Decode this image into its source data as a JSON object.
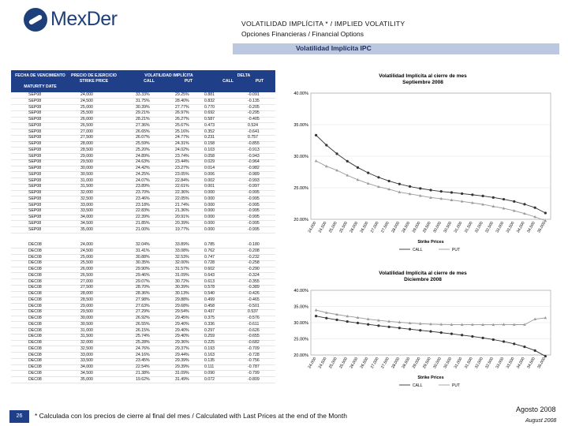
{
  "header": {
    "logo_text": "MexDer",
    "title": "VOLATILIDAD IMPLÍCITA * / IMPLIED VOLATILITY",
    "subtitle": "Opciones Financieras / Financial Options",
    "banner": "Volatilidad Implícita IPC"
  },
  "table": {
    "headers": {
      "expiry": "FECHA DE VENCIMIENTO",
      "expiry_en": "MATURITY DATE",
      "strike": "PRECIO DE EJERCICIO",
      "strike_en": "STRIKE PRICE",
      "vol": "VOLATILIDAD IMPLÍCITA",
      "call": "CALL",
      "put": "PUT",
      "delta": "DELTA",
      "delta_call": "CALL",
      "delta_put": "PUT"
    },
    "sep_rows": [
      [
        "SEP08",
        "24,000",
        "33.33%",
        "29.25%",
        "0.881",
        "-0.091"
      ],
      [
        "SEP08",
        "24,500",
        "31.75%",
        "28.40%",
        "0.832",
        "-0.135"
      ],
      [
        "SEP08",
        "25,000",
        "30.39%",
        "27.77%",
        "0.770",
        "-0.205"
      ],
      [
        "SEP08",
        "25,500",
        "29.21%",
        "26.97%",
        "0.692",
        "-0.295"
      ],
      [
        "SEP08",
        "26,000",
        "28.21%",
        "26.27%",
        "0.587",
        "-0.405"
      ],
      [
        "SEP08",
        "26,500",
        "27.36%",
        "25.67%",
        "0.473",
        "0.524"
      ],
      [
        "SEP08",
        "27,000",
        "26.65%",
        "25.16%",
        "0.352",
        "-0.641"
      ],
      [
        "SEP08",
        "27,500",
        "26.07%",
        "24.77%",
        "0.231",
        "0.757"
      ],
      [
        "SEP08",
        "28,000",
        "25.59%",
        "24.31%",
        "0.158",
        "-0.855"
      ],
      [
        "SEP08",
        "28,500",
        "25.20%",
        "24.02%",
        "0.103",
        "-0.913"
      ],
      [
        "SEP08",
        "29,000",
        "24.89%",
        "23.74%",
        "0.058",
        "-0.943"
      ],
      [
        "SEP08",
        "29,500",
        "24.63%",
        "23.44%",
        "0.029",
        "-0.964"
      ],
      [
        "SEP08",
        "30,000",
        "24.42%",
        "23.27%",
        "0.014",
        "-0.982"
      ],
      [
        "SEP08",
        "30,500",
        "24.25%",
        "23.05%",
        "0.006",
        "-0.989"
      ],
      [
        "SEP08",
        "31,000",
        "24.07%",
        "22.84%",
        "0.002",
        "-0.993"
      ],
      [
        "SEP08",
        "31,500",
        "23.89%",
        "22.61%",
        "0.001",
        "-0.997"
      ],
      [
        "SEP08",
        "32,000",
        "23.70%",
        "22.36%",
        "0.000",
        "-0.995"
      ],
      [
        "SEP08",
        "32,500",
        "23.46%",
        "22.05%",
        "0.000",
        "-0.995"
      ],
      [
        "SEP08",
        "33,000",
        "23.18%",
        "21.74%",
        "0.000",
        "-0.995"
      ],
      [
        "SEP08",
        "33,500",
        "22.83%",
        "21.36%",
        "0.000",
        "-0.995"
      ],
      [
        "SEP08",
        "34,000",
        "22.39%",
        "20.91%",
        "0.000",
        "-0.995"
      ],
      [
        "SEP08",
        "34,500",
        "21.85%",
        "20.39%",
        "0.000",
        "-0.995"
      ],
      [
        "SEP08",
        "35,000",
        "21.00%",
        "19.77%",
        "0.000",
        "-0.995"
      ]
    ],
    "dec_rows": [
      [
        "DEC08",
        "24,000",
        "32.04%",
        "33.89%",
        "0.785",
        "-0.180"
      ],
      [
        "DEC08",
        "24,500",
        "31.41%",
        "33.08%",
        "0.762",
        "-0.208"
      ],
      [
        "DEC08",
        "25,000",
        "30.88%",
        "32.53%",
        "0.747",
        "-0.232"
      ],
      [
        "DEC08",
        "25,500",
        "30.35%",
        "32.00%",
        "0.728",
        "-0.258"
      ],
      [
        "DEC08",
        "26,000",
        "29.90%",
        "31.57%",
        "0.602",
        "-0.290"
      ],
      [
        "DEC08",
        "26,500",
        "29.46%",
        "31.09%",
        "0.643",
        "-0.324"
      ],
      [
        "DEC08",
        "27,000",
        "29.07%",
        "30.72%",
        "0.613",
        "-0.355"
      ],
      [
        "DEC08",
        "27,500",
        "28.70%",
        "30.39%",
        "0.578",
        "-0.389"
      ],
      [
        "DEC08",
        "28,000",
        "28.36%",
        "30.13%",
        "0.540",
        "-0.426"
      ],
      [
        "DEC08",
        "28,500",
        "27.98%",
        "29.88%",
        "0.499",
        "-0.465"
      ],
      [
        "DEC08",
        "29,000",
        "27.63%",
        "29.68%",
        "0.458",
        "-0.501"
      ],
      [
        "DEC08",
        "29,500",
        "27.29%",
        "29.54%",
        "0.437",
        "0.537"
      ],
      [
        "DEC08",
        "30,000",
        "26.92%",
        "29.45%",
        "0.375",
        "-0.576"
      ],
      [
        "DEC08",
        "30,500",
        "26.55%",
        "29.40%",
        "0.336",
        "-0.611"
      ],
      [
        "DEC08",
        "31,000",
        "26.15%",
        "29.40%",
        "0.297",
        "-0.626"
      ],
      [
        "DEC08",
        "31,500",
        "25.74%",
        "29.40%",
        "0.259",
        "-0.655"
      ],
      [
        "DEC08",
        "32,000",
        "25.28%",
        "29.36%",
        "0.225",
        "-0.682"
      ],
      [
        "DEC08",
        "32,500",
        "24.76%",
        "29.37%",
        "0.193",
        "-0.709"
      ],
      [
        "DEC08",
        "33,000",
        "24.16%",
        "29.44%",
        "0.163",
        "-0.728"
      ],
      [
        "DEC08",
        "33,500",
        "23.45%",
        "29.39%",
        "0.135",
        "-0.756"
      ],
      [
        "DEC08",
        "34,000",
        "22.54%",
        "29.39%",
        "0.111",
        "-0.787"
      ],
      [
        "DEC08",
        "34,500",
        "21.38%",
        "31.09%",
        "0.090",
        "-0.799"
      ],
      [
        "DEC08",
        "35,000",
        "19.62%",
        "31.49%",
        "0.072",
        "-0.809"
      ]
    ]
  },
  "chart_data": [
    {
      "type": "line",
      "title": "Volatilidad Implícita al cierre de mes",
      "subtitle": "Septiembre 2008",
      "xlabel": "Strike Prices",
      "ylim": [
        20,
        40
      ],
      "yticks": [
        "20.00%",
        "25.00%",
        "30.00%",
        "35.00%",
        "40.00%"
      ],
      "x": [
        "24,000",
        "24,500",
        "25,000",
        "25,500",
        "26,000",
        "26,500",
        "27,000",
        "27,500",
        "28,000",
        "28,500",
        "29,000",
        "29,500",
        "30,000",
        "30,500",
        "31,000",
        "31,500",
        "32,000",
        "32,500",
        "33,000",
        "33,500",
        "34,000",
        "34,500",
        "35,000"
      ],
      "series": [
        {
          "name": "CALL",
          "color": "#333333",
          "values": [
            33.33,
            31.75,
            30.39,
            29.21,
            28.21,
            27.36,
            26.65,
            26.07,
            25.59,
            25.2,
            24.89,
            24.63,
            24.42,
            24.25,
            24.07,
            23.89,
            23.7,
            23.46,
            23.18,
            22.83,
            22.39,
            21.85,
            21.0
          ]
        },
        {
          "name": "PUT",
          "color": "#9a9a9a",
          "values": [
            29.25,
            28.4,
            27.77,
            26.97,
            26.27,
            25.67,
            25.16,
            24.77,
            24.31,
            24.02,
            23.74,
            23.44,
            23.27,
            23.05,
            22.84,
            22.61,
            22.36,
            22.05,
            21.74,
            21.36,
            20.91,
            20.39,
            19.77
          ]
        }
      ]
    },
    {
      "type": "line",
      "title": "Volatilidad Implícita al cierre de mes",
      "subtitle": "Diciembre 2008",
      "xlabel": "Strike Prices",
      "ylim": [
        20,
        40
      ],
      "yticks": [
        "20.00%",
        "25.00%",
        "30.00%",
        "35.00%",
        "40.00%"
      ],
      "x": [
        "24,000",
        "24,500",
        "25,000",
        "25,500",
        "26,000",
        "26,500",
        "27,000",
        "27,500",
        "28,000",
        "28,500",
        "29,000",
        "29,500",
        "30,000",
        "30,500",
        "31,000",
        "31,500",
        "32,000",
        "32,500",
        "33,000",
        "33,500",
        "34,000",
        "34,500",
        "35,000"
      ],
      "series": [
        {
          "name": "CALL",
          "color": "#333333",
          "values": [
            32.04,
            31.41,
            30.88,
            30.35,
            29.9,
            29.46,
            29.07,
            28.7,
            28.36,
            27.98,
            27.63,
            27.29,
            26.92,
            26.55,
            26.15,
            25.74,
            25.28,
            24.76,
            24.16,
            23.45,
            22.54,
            21.38,
            19.62
          ]
        },
        {
          "name": "PUT",
          "color": "#9a9a9a",
          "values": [
            33.89,
            33.08,
            32.53,
            32.0,
            31.57,
            31.09,
            30.72,
            30.39,
            30.13,
            29.88,
            29.68,
            29.54,
            29.45,
            29.4,
            29.4,
            29.4,
            29.36,
            29.37,
            29.44,
            29.39,
            29.39,
            31.09,
            31.49
          ]
        }
      ]
    }
  ],
  "footer": {
    "page": "26",
    "note": "* Calculada con los precios de cierre al final del mes / Calculated with Last Prices at the end of the Month",
    "date": "Agosto 2008",
    "date_en": "August 2008"
  }
}
